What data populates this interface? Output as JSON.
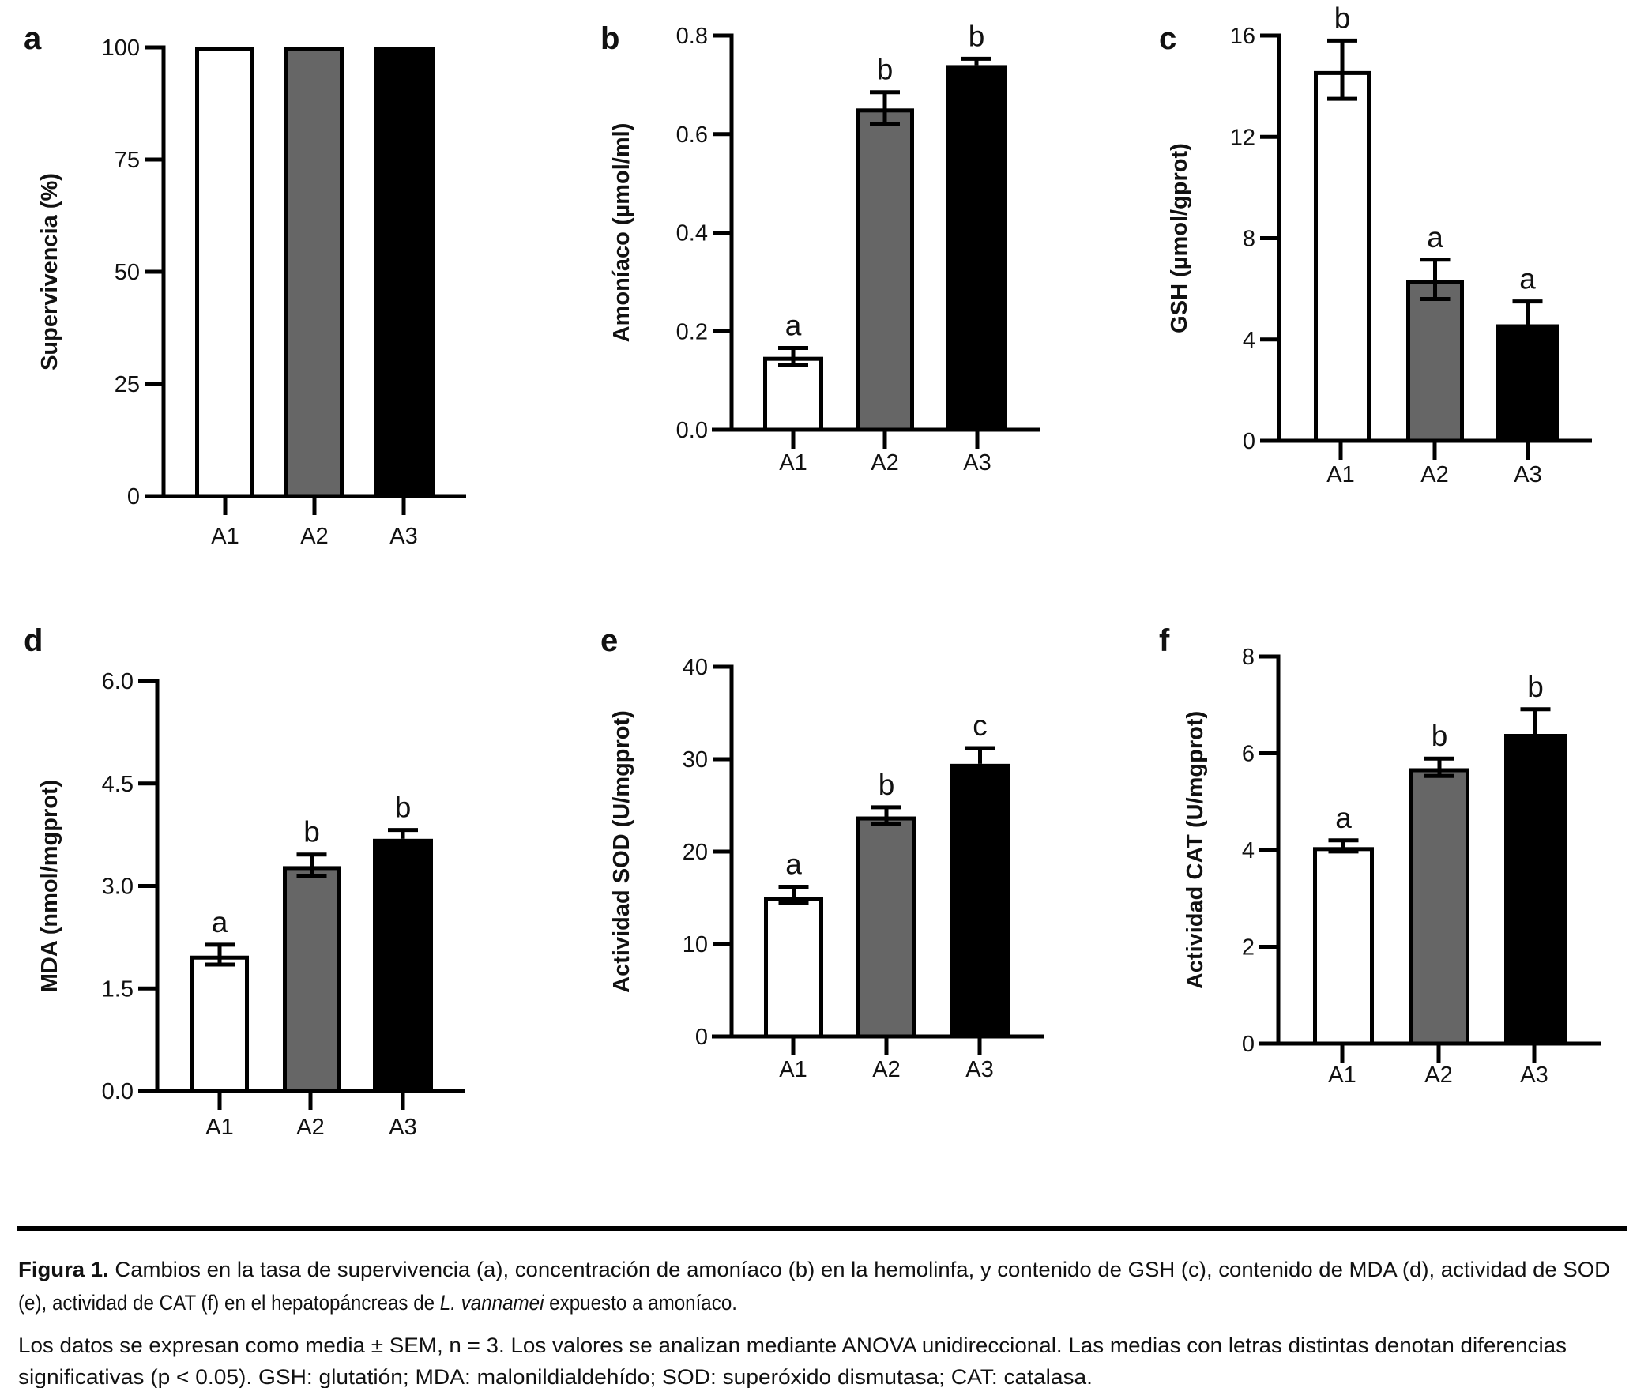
{
  "colors": {
    "A1": "#ffffff",
    "A2": "#666666",
    "A3": "#000000",
    "stroke": "#000000"
  },
  "chart_data": [
    {
      "type": "bar",
      "panel": "a",
      "categories": [
        "A1",
        "A2",
        "A3"
      ],
      "values": [
        100,
        100,
        100
      ],
      "error_low": [
        null,
        null,
        null
      ],
      "error_high": [
        null,
        null,
        null
      ],
      "significance": [
        "",
        "",
        ""
      ],
      "ylabel": "Supervivencia (%)",
      "ylim": [
        0,
        100
      ],
      "yticks": [
        0,
        25,
        50,
        75,
        100
      ],
      "ytick_labels": [
        "0",
        "25",
        "50",
        "75",
        "100"
      ]
    },
    {
      "type": "bar",
      "panel": "b",
      "categories": [
        "A1",
        "A2",
        "A3"
      ],
      "values": [
        0.148,
        0.652,
        0.74
      ],
      "error_low": [
        0.132,
        0.62,
        null
      ],
      "error_high": [
        0.166,
        0.685,
        0.753
      ],
      "significance": [
        "a",
        "b",
        "b"
      ],
      "ylabel": "Amoníaco (µmol/ml)",
      "ylim": [
        0,
        0.8
      ],
      "yticks": [
        0,
        0.2,
        0.4,
        0.6,
        0.8
      ],
      "ytick_labels": [
        "0.0",
        "0.2",
        "0.4",
        "0.6",
        "0.8"
      ]
    },
    {
      "type": "bar",
      "panel": "c",
      "categories": [
        "A1",
        "A2",
        "A3"
      ],
      "values": [
        14.6,
        6.35,
        4.6
      ],
      "error_low": [
        13.5,
        5.6,
        null
      ],
      "error_high": [
        15.8,
        7.15,
        5.5
      ],
      "significance": [
        "b",
        "a",
        "a"
      ],
      "ylabel": "GSH (µmol/gprot)",
      "ylim": [
        0,
        16
      ],
      "yticks": [
        0,
        4,
        8,
        12,
        16
      ],
      "ytick_labels": [
        "0",
        "4",
        "8",
        "12",
        "16"
      ]
    },
    {
      "type": "bar",
      "panel": "d",
      "categories": [
        "A1",
        "A2",
        "A3"
      ],
      "values": [
        1.98,
        3.29,
        3.69
      ],
      "error_low": [
        1.85,
        3.15,
        null
      ],
      "error_high": [
        2.14,
        3.46,
        3.82
      ],
      "significance": [
        "a",
        "b",
        "b"
      ],
      "ylabel": "MDA (nmol/mgprot)",
      "ylim": [
        0,
        6.0
      ],
      "yticks": [
        0,
        1.5,
        3.0,
        4.5,
        6.0
      ],
      "ytick_labels": [
        "0.0",
        "1.5",
        "3.0",
        "4.5",
        "6.0"
      ]
    },
    {
      "type": "bar",
      "panel": "e",
      "categories": [
        "A1",
        "A2",
        "A3"
      ],
      "values": [
        15.1,
        23.8,
        29.5
      ],
      "error_low": [
        14.4,
        23.0,
        null
      ],
      "error_high": [
        16.2,
        24.8,
        31.2
      ],
      "significance": [
        "a",
        "b",
        "c"
      ],
      "ylabel": "Actividad SOD (U/mgprot)",
      "ylim": [
        0,
        40
      ],
      "yticks": [
        0,
        10,
        20,
        30,
        40
      ],
      "ytick_labels": [
        "0",
        "10",
        "20",
        "30",
        "40"
      ]
    },
    {
      "type": "bar",
      "panel": "f",
      "categories": [
        "A1",
        "A2",
        "A3"
      ],
      "values": [
        4.06,
        5.69,
        6.4
      ],
      "error_low": [
        3.97,
        5.53,
        null
      ],
      "error_high": [
        4.2,
        5.89,
        6.91
      ],
      "significance": [
        "a",
        "b",
        "b"
      ],
      "ylabel": "Actividad CAT (U/mgprot)",
      "ylim": [
        0,
        8
      ],
      "yticks": [
        0,
        2,
        4,
        6,
        8
      ],
      "ytick_labels": [
        "0",
        "2",
        "4",
        "6",
        "8"
      ]
    }
  ],
  "caption": {
    "label": "Figura 1.",
    "line1_rest": " Cambios en la tasa de supervivencia (a), concentración de amoníaco (b) en la hemolinfa, y contenido de GSH (c), contenido de MDA (d), actividad de SOD",
    "line2_pre": "(e), actividad de CAT (f) en el hepatopáncreas de ",
    "line2_italic": "L. vannamei",
    "line2_post": " expuesto a amoníaco.",
    "line3": "Los datos se expresan como media ± SEM, n = 3. Los valores se analizan mediante ANOVA unidireccional. Las medias con letras distintas denotan diferencias",
    "line4": "significativas (p < 0.05). GSH: glutatión; MDA: malonildialdehído; SOD: superóxido dismutasa; CAT: catalasa."
  }
}
